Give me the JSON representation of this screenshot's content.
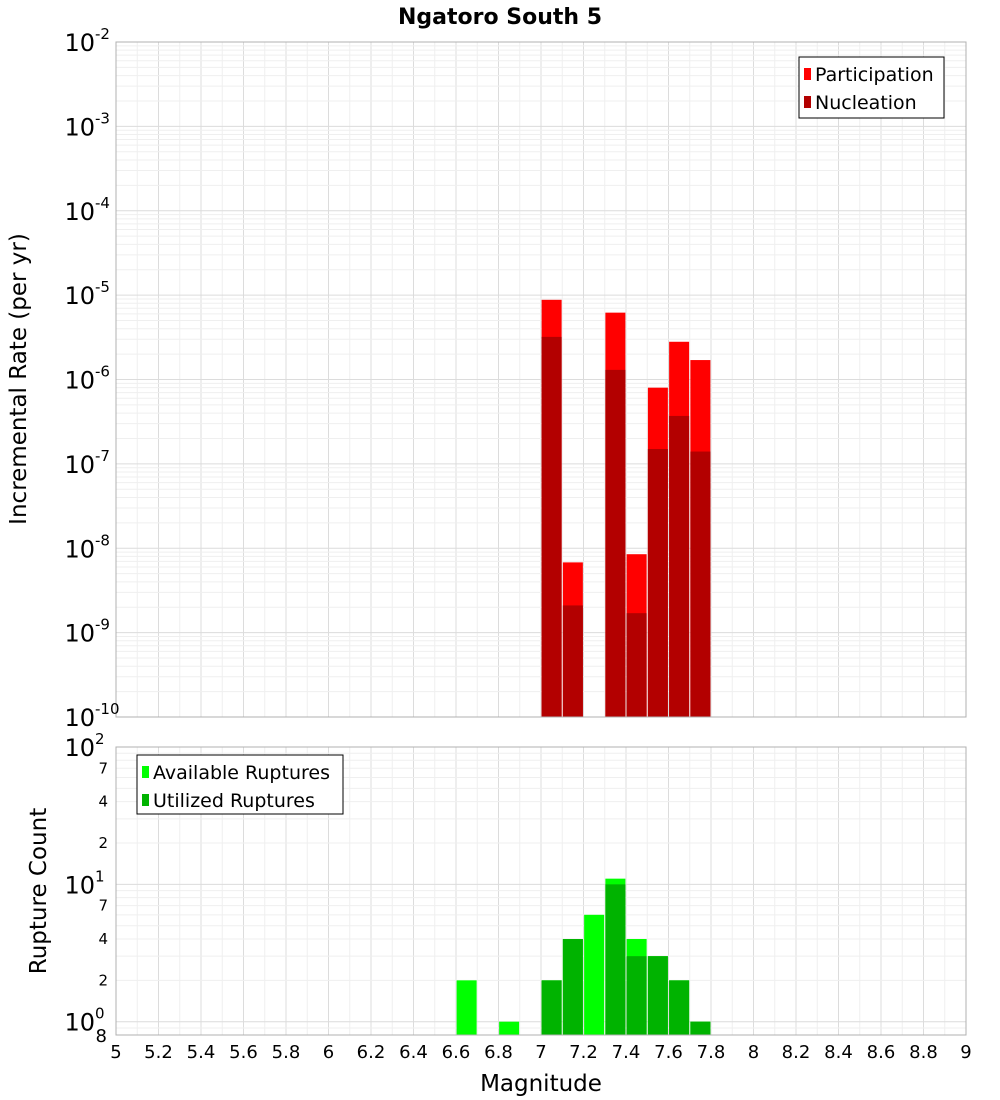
{
  "chart_data": [
    {
      "type": "bar",
      "title": "Ngatoro South 5",
      "xlabel": "Magnitude",
      "ylabel": "Incremental Rate (per yr)",
      "yscale": "log",
      "xlim": [
        5,
        9
      ],
      "ylim": [
        1e-10,
        0.01
      ],
      "y_ticks": [
        {
          "base": "10",
          "exp": "-2",
          "value": 0.01
        },
        {
          "base": "10",
          "exp": "-3",
          "value": 0.001
        },
        {
          "base": "10",
          "exp": "-4",
          "value": 0.0001
        },
        {
          "base": "10",
          "exp": "-5",
          "value": 1e-05
        },
        {
          "base": "10",
          "exp": "-6",
          "value": 1e-06
        },
        {
          "base": "10",
          "exp": "-7",
          "value": 1e-07
        },
        {
          "base": "10",
          "exp": "-8",
          "value": 1e-08
        },
        {
          "base": "10",
          "exp": "-9",
          "value": 1e-09
        },
        {
          "base": "10",
          "exp": "-10",
          "value": 1e-10
        }
      ],
      "legend_position": "top-right",
      "series": [
        {
          "name": "Participation",
          "color": "#ff0000",
          "points": [
            {
              "x": 7.05,
              "y": 8.8e-06
            },
            {
              "x": 7.15,
              "y": 6.8e-09
            },
            {
              "x": 7.35,
              "y": 6.2e-06
            },
            {
              "x": 7.45,
              "y": 8.5e-09
            },
            {
              "x": 7.55,
              "y": 8e-07
            },
            {
              "x": 7.65,
              "y": 2.8e-06
            },
            {
              "x": 7.75,
              "y": 1.7e-06
            }
          ]
        },
        {
          "name": "Nucleation",
          "color": "#b30000",
          "points": [
            {
              "x": 7.05,
              "y": 3.2e-06
            },
            {
              "x": 7.15,
              "y": 2.1e-09
            },
            {
              "x": 7.35,
              "y": 1.3e-06
            },
            {
              "x": 7.45,
              "y": 1.7e-09
            },
            {
              "x": 7.55,
              "y": 1.5e-07
            },
            {
              "x": 7.65,
              "y": 3.7e-07
            },
            {
              "x": 7.75,
              "y": 1.4e-07
            }
          ]
        }
      ]
    },
    {
      "type": "bar",
      "xlabel": "Magnitude",
      "ylabel": "Rupture Count",
      "yscale": "log",
      "xlim": [
        5,
        9
      ],
      "ylim": [
        0.8,
        100
      ],
      "x_ticks": [
        "5",
        "5.2",
        "5.4",
        "5.6",
        "5.8",
        "6",
        "6.2",
        "6.4",
        "6.6",
        "6.8",
        "7",
        "7.2",
        "7.4",
        "7.6",
        "7.8",
        "8",
        "8.2",
        "8.4",
        "8.6",
        "8.8",
        "9"
      ],
      "y_major_ticks": [
        {
          "base": "10",
          "exp": "2",
          "value": 100
        },
        {
          "base": "10",
          "exp": "1",
          "value": 10
        },
        {
          "base": "10",
          "exp": "0",
          "value": 1
        }
      ],
      "y_minor_ticks": [
        {
          "label": "7",
          "value": 70
        },
        {
          "label": "4",
          "value": 40
        },
        {
          "label": "2",
          "value": 20
        },
        {
          "label": "7",
          "value": 7
        },
        {
          "label": "4",
          "value": 4
        },
        {
          "label": "2",
          "value": 2
        },
        {
          "label": "8",
          "value": 0.8
        }
      ],
      "legend_position": "top-left",
      "series": [
        {
          "name": "Available Ruptures",
          "color": "#00ff00",
          "points": [
            {
              "x": 6.65,
              "y": 2
            },
            {
              "x": 6.85,
              "y": 1
            },
            {
              "x": 7.05,
              "y": 2
            },
            {
              "x": 7.15,
              "y": 4
            },
            {
              "x": 7.25,
              "y": 6
            },
            {
              "x": 7.35,
              "y": 11
            },
            {
              "x": 7.45,
              "y": 4
            },
            {
              "x": 7.55,
              "y": 3
            },
            {
              "x": 7.65,
              "y": 2
            },
            {
              "x": 7.75,
              "y": 1
            }
          ]
        },
        {
          "name": "Utilized Ruptures",
          "color": "#00b300",
          "points": [
            {
              "x": 7.05,
              "y": 2
            },
            {
              "x": 7.15,
              "y": 4
            },
            {
              "x": 7.35,
              "y": 10
            },
            {
              "x": 7.45,
              "y": 3
            },
            {
              "x": 7.55,
              "y": 3
            },
            {
              "x": 7.65,
              "y": 2
            },
            {
              "x": 7.75,
              "y": 1
            }
          ]
        }
      ]
    }
  ]
}
